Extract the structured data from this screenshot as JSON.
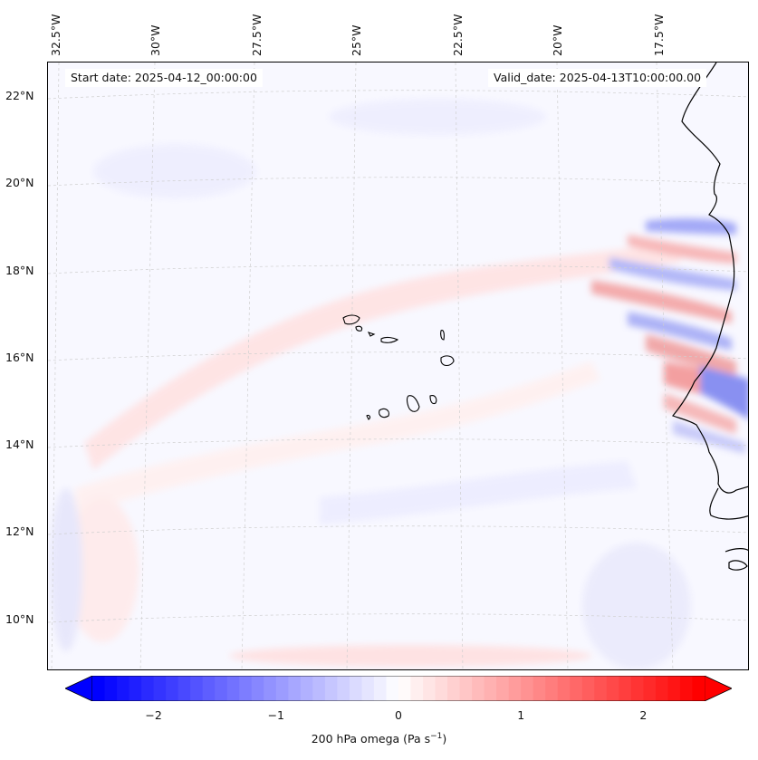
{
  "map": {
    "lon_labels": [
      "32.5°W",
      "30°W",
      "27.5°W",
      "25°W",
      "22.5°W",
      "20°W",
      "17.5°W"
    ],
    "lat_labels": [
      "22°N",
      "20°N",
      "18°N",
      "16°N",
      "14°N",
      "12°N",
      "10°N"
    ],
    "start_date": "Start date: 2025-04-12_00:00:00",
    "valid_date": "Valid_date: 2025-04-13T10:00:00.00",
    "background_color": "#f8f8ff",
    "coast_color": "#000000",
    "grid_color": "#bbbbbb"
  },
  "colorbar": {
    "ticks": [
      "−2",
      "−1",
      "0",
      "1",
      "2"
    ],
    "tick_values": [
      -2,
      -1,
      0,
      1,
      2
    ],
    "range": [
      -2.5,
      2.5
    ],
    "label_prefix": "200 hPa omega (Pa s",
    "label_exp": "−1",
    "label_suffix": ")",
    "colors": {
      "min": "#0000ff",
      "mid": "#ffffff",
      "max": "#ff0000"
    }
  }
}
